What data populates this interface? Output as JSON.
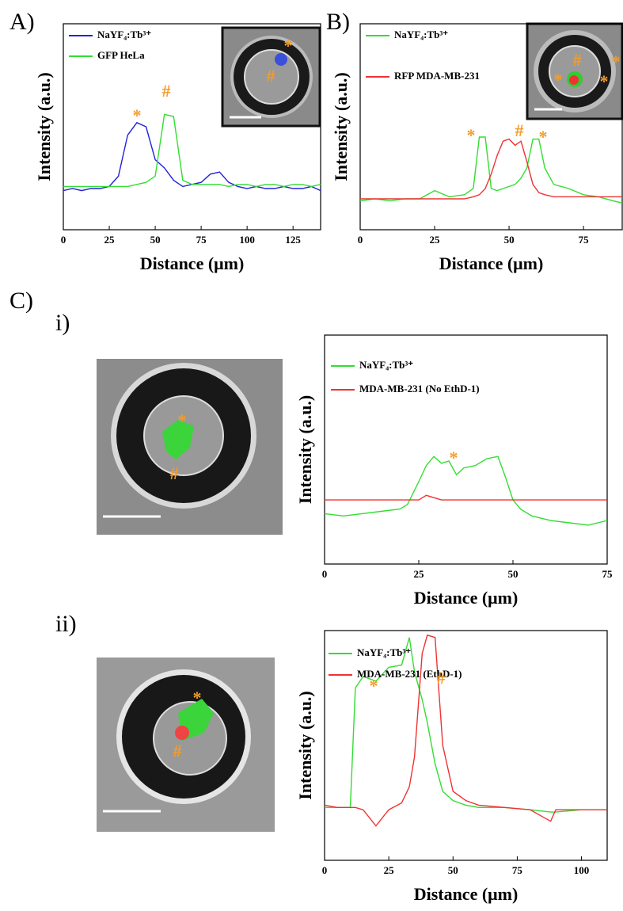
{
  "panel_labels": [
    "A)",
    "B)",
    "C)",
    "i)",
    "ii)"
  ],
  "chart_data": [
    {
      "type": "line",
      "xlabel": "Distance (μm)",
      "ylabel": "Intensity (a.u.)",
      "xlim": [
        0,
        140
      ],
      "xticks": [
        0,
        25,
        50,
        75,
        100,
        125
      ],
      "ylim": [
        0,
        1
      ],
      "annotations": [
        "*",
        "#",
        "*",
        "#"
      ],
      "x": [
        0,
        5,
        10,
        15,
        20,
        25,
        30,
        35,
        40,
        45,
        50,
        55,
        60,
        65,
        70,
        75,
        80,
        85,
        90,
        95,
        100,
        105,
        110,
        115,
        120,
        125,
        130,
        135,
        140
      ],
      "series": [
        {
          "name": "NaYF₄:Tb³⁺",
          "color": "#2222dd",
          "values": [
            0.19,
            0.2,
            0.19,
            0.2,
            0.2,
            0.21,
            0.26,
            0.46,
            0.52,
            0.5,
            0.34,
            0.3,
            0.24,
            0.21,
            0.22,
            0.23,
            0.27,
            0.28,
            0.23,
            0.21,
            0.2,
            0.21,
            0.2,
            0.2,
            0.21,
            0.2,
            0.2,
            0.21,
            0.19
          ]
        },
        {
          "name": "GFP HeLa",
          "color": "#33dd33",
          "values": [
            0.21,
            0.21,
            0.21,
            0.21,
            0.21,
            0.21,
            0.21,
            0.21,
            0.22,
            0.23,
            0.26,
            0.56,
            0.55,
            0.24,
            0.22,
            0.22,
            0.22,
            0.22,
            0.21,
            0.22,
            0.22,
            0.21,
            0.22,
            0.22,
            0.21,
            0.22,
            0.22,
            0.21,
            0.22
          ]
        }
      ]
    },
    {
      "type": "line",
      "xlabel": "Distance (μm)",
      "ylabel": "Intensity (a.u.)",
      "xlim": [
        0,
        88
      ],
      "xticks": [
        0,
        25,
        50,
        75
      ],
      "ylim": [
        0,
        1
      ],
      "annotations": [
        "*",
        "#",
        "*",
        "*",
        "#",
        "*",
        "*"
      ],
      "x": [
        0,
        5,
        10,
        15,
        20,
        25,
        30,
        35,
        38,
        40,
        42,
        44,
        46,
        48,
        50,
        52,
        54,
        56,
        58,
        60,
        62,
        65,
        70,
        75,
        80,
        85,
        88
      ],
      "series": [
        {
          "name": "NaYF₄:Tb³⁺",
          "color": "#33dd33",
          "values": [
            0.14,
            0.15,
            0.14,
            0.15,
            0.15,
            0.19,
            0.16,
            0.17,
            0.2,
            0.45,
            0.45,
            0.2,
            0.19,
            0.2,
            0.21,
            0.22,
            0.25,
            0.3,
            0.44,
            0.44,
            0.3,
            0.22,
            0.2,
            0.17,
            0.16,
            0.14,
            0.13
          ]
        },
        {
          "name": "RFP MDA-MB-231",
          "color": "#ee3333",
          "values": [
            0.15,
            0.15,
            0.15,
            0.15,
            0.15,
            0.15,
            0.15,
            0.15,
            0.16,
            0.17,
            0.2,
            0.27,
            0.36,
            0.43,
            0.44,
            0.41,
            0.43,
            0.33,
            0.22,
            0.18,
            0.17,
            0.16,
            0.16,
            0.16,
            0.16,
            0.16,
            0.16
          ]
        }
      ]
    },
    {
      "type": "line",
      "xlabel": "Distance (μm)",
      "ylabel": "Intensity (a.u.)",
      "xlim": [
        0,
        75
      ],
      "xticks": [
        0,
        25,
        50,
        75
      ],
      "ylim": [
        0,
        1
      ],
      "annotations": [
        "*",
        "*",
        "#"
      ],
      "x": [
        0,
        5,
        10,
        15,
        20,
        22,
        25,
        27,
        29,
        31,
        33,
        35,
        37,
        40,
        43,
        46,
        48,
        50,
        52,
        55,
        60,
        65,
        70,
        75
      ],
      "series": [
        {
          "name": "NaYF₄:Tb³⁺",
          "color": "#33dd33",
          "values": [
            0.22,
            0.21,
            0.22,
            0.23,
            0.24,
            0.26,
            0.36,
            0.43,
            0.47,
            0.44,
            0.45,
            0.39,
            0.42,
            0.43,
            0.46,
            0.47,
            0.38,
            0.28,
            0.24,
            0.21,
            0.19,
            0.18,
            0.17,
            0.19
          ]
        },
        {
          "name": "MDA-MB-231 (No EthD-1)",
          "color": "#ee3333",
          "values": [
            0.28,
            0.28,
            0.28,
            0.28,
            0.28,
            0.28,
            0.28,
            0.3,
            0.29,
            0.28,
            0.28,
            0.28,
            0.28,
            0.28,
            0.28,
            0.28,
            0.28,
            0.28,
            0.28,
            0.28,
            0.28,
            0.28,
            0.28,
            0.28
          ]
        }
      ]
    },
    {
      "type": "line",
      "xlabel": "Distance (μm)",
      "ylabel": "Intensity (a.u.)",
      "xlim": [
        0,
        110
      ],
      "xticks": [
        0,
        25,
        50,
        75,
        100
      ],
      "ylim": [
        0,
        1
      ],
      "annotations": [
        "*",
        "#",
        "*",
        "#"
      ],
      "x": [
        0,
        5,
        10,
        12,
        15,
        20,
        25,
        30,
        33,
        35,
        38,
        40,
        43,
        46,
        50,
        55,
        60,
        70,
        80,
        88,
        90,
        100,
        110
      ],
      "series": [
        {
          "name": "NaYF₄:Tb³⁺",
          "color": "#33dd33",
          "values": [
            0.23,
            0.23,
            0.23,
            0.75,
            0.8,
            0.78,
            0.84,
            0.85,
            0.97,
            0.82,
            0.7,
            0.6,
            0.42,
            0.3,
            0.26,
            0.24,
            0.23,
            0.23,
            0.22,
            0.21,
            0.21,
            0.22,
            0.22
          ]
        },
        {
          "name": "MDA-MB-231 (EthD-1)",
          "color": "#ee3333",
          "values": [
            0.24,
            0.23,
            0.23,
            0.23,
            0.22,
            0.15,
            0.22,
            0.25,
            0.32,
            0.45,
            0.9,
            0.98,
            0.97,
            0.5,
            0.3,
            0.26,
            0.24,
            0.23,
            0.22,
            0.17,
            0.22,
            0.22,
            0.22
          ]
        }
      ]
    }
  ]
}
